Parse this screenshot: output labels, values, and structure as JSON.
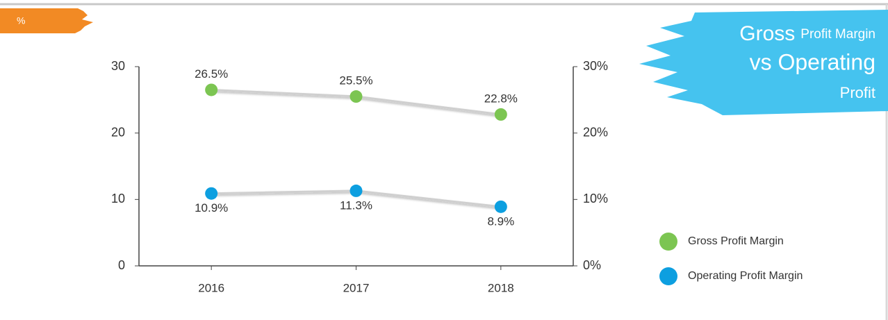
{
  "chart_data": {
    "type": "line",
    "title_parts": [
      "Gross",
      "Profit Margin",
      "vs Operating",
      "Profit"
    ],
    "ylabel": "%",
    "categories": [
      "2016",
      "2017",
      "2018"
    ],
    "series": [
      {
        "name": "Gross Profit Margin",
        "color": "#7cc552",
        "values": [
          26.5,
          25.5,
          22.8
        ],
        "value_labels": [
          "26.5%",
          "25.5%",
          "22.8%"
        ]
      },
      {
        "name": "Operating Profit Margin",
        "color": "#0d9fe0",
        "values": [
          10.9,
          11.3,
          8.9
        ],
        "value_labels": [
          "10.9%",
          "11.3%",
          "8.9%"
        ]
      }
    ],
    "ylim": [
      0,
      30
    ],
    "yticks": [
      0,
      10,
      20,
      30
    ],
    "y2lim": [
      0,
      30
    ],
    "y2ticks": [
      {
        "value": 0,
        "label": "0%"
      },
      {
        "value": 10,
        "label": "10%"
      },
      {
        "value": 20,
        "label": "20%"
      },
      {
        "value": 30,
        "label": "30%"
      }
    ],
    "legend": "right"
  }
}
